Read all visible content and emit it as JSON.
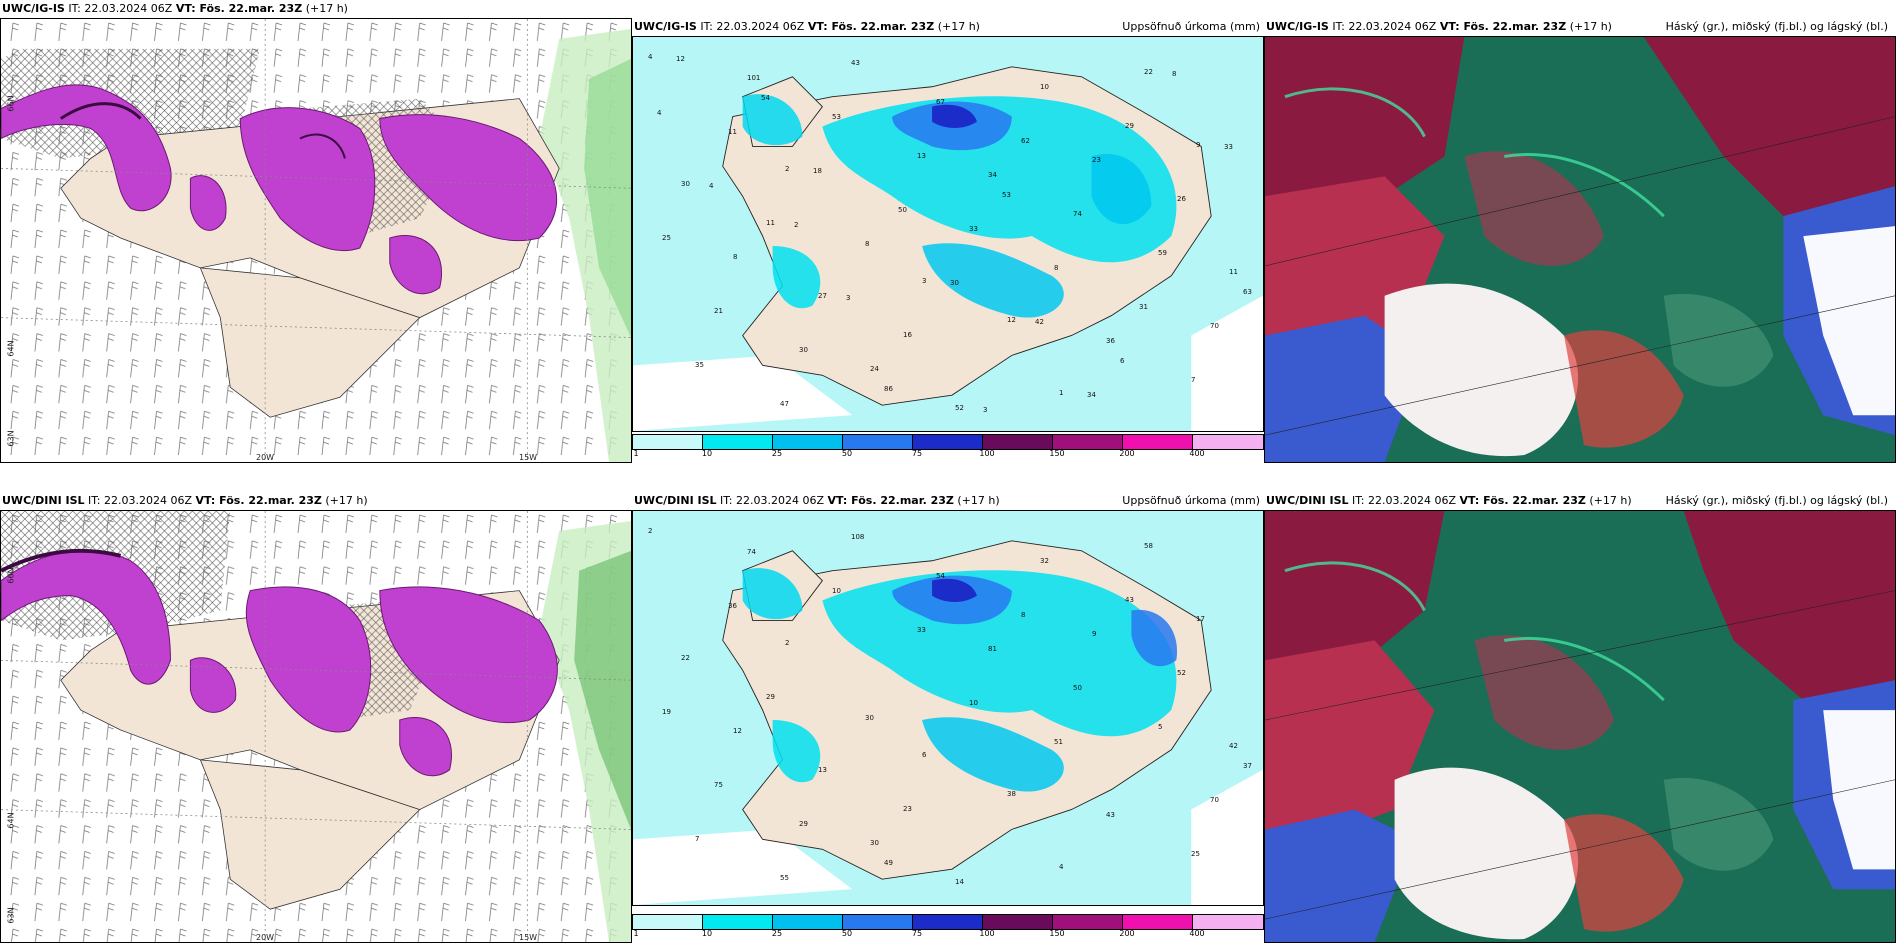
{
  "rows": [
    {
      "model": "UWC/IG-IS",
      "panels": [
        {
          "left_title_model": "UWC/IG-IS",
          "it": "IT: 22.03.2024 06Z",
          "vt": "VT: Fös. 22.mar. 23Z",
          "lead": "(+17 h)",
          "right_title": "",
          "lon_labels": [
            "20W",
            "15W"
          ],
          "lat_labels": [
            "66N",
            "64N",
            "63N"
          ]
        },
        {
          "left_title_model": "UWC/IG-IS",
          "it": "IT: 22.03.2024 06Z",
          "vt": "VT: Fös. 22.mar. 23Z",
          "lead": "(+17 h)",
          "right_title": "Uppsöfnuð úrkoma (mm)",
          "lat_labels": [
            "66N",
            "64N"
          ]
        },
        {
          "left_title_model": "UWC/IG-IS",
          "it": "IT: 22.03.2024 06Z",
          "vt": "VT: Fös. 22.mar. 23Z",
          "lead": "(+17 h)",
          "right_title": "Háský (gr.), miðský (fj.bl.) og lágský (bl.)"
        }
      ]
    },
    {
      "model": "UWC/DINI ISL",
      "panels": [
        {
          "left_title_model": "UWC/DINI ISL",
          "it": "IT: 22.03.2024 06Z",
          "vt": "VT: Fös. 22.mar. 23Z",
          "lead": "(+17 h)",
          "right_title": "",
          "lon_labels": [
            "20W",
            "15W"
          ],
          "lat_labels": [
            "66N",
            "64N",
            "63N"
          ]
        },
        {
          "left_title_model": "UWC/DINI ISL",
          "it": "IT: 22.03.2024 06Z",
          "vt": "VT: Fös. 22.mar. 23Z",
          "lead": "(+17 h)",
          "right_title": "Uppsöfnuð úrkoma (mm)",
          "lat_labels": [
            "66N",
            "64N"
          ]
        },
        {
          "left_title_model": "UWC/DINI ISL",
          "it": "IT: 22.03.2024 06Z",
          "vt": "VT: Fös. 22.mar. 23Z",
          "lead": "(+17 h)",
          "right_title": "Háský (gr.), miðský (fj.bl.) og lágský (bl.)"
        }
      ]
    }
  ],
  "colorbar": {
    "ticks": [
      "1",
      "10",
      "25",
      "50",
      "75",
      "100",
      "150",
      "200",
      "400"
    ],
    "colors": [
      "#c8fafa",
      "#00e8f0",
      "#00c0f0",
      "#2878f0",
      "#1c2cc8",
      "#6a0a5a",
      "#a0107a",
      "#f010b0",
      "#f4b0f0"
    ]
  },
  "precip_labels": {
    "row1": [
      "4",
      "2",
      "3",
      "1",
      "9",
      "8",
      "24",
      "12",
      "22",
      "30",
      "27",
      "52",
      "23",
      "11",
      "11",
      "16",
      "10",
      "26",
      "21",
      "43",
      "34",
      "29",
      "25",
      "30",
      "67",
      "74",
      "70",
      "101",
      "86",
      "62",
      "59",
      "35",
      "53",
      "33",
      "36",
      "63",
      "47",
      "13",
      "8",
      "7",
      "11",
      "8",
      "53",
      "31",
      "12",
      "18",
      "30",
      "34",
      "33",
      "54",
      "50",
      "42",
      "8",
      "4",
      "3",
      "3",
      "6",
      "4",
      "2"
    ],
    "row2": [
      "2",
      "2",
      "6",
      "4",
      "17",
      "12",
      "30",
      "38",
      "58",
      "22",
      "13",
      "14",
      "9",
      "42",
      "29",
      "23",
      "32",
      "52",
      "75",
      "108",
      "81",
      "43",
      "19",
      "29",
      "54",
      "50",
      "70",
      "74",
      "49",
      "8",
      "5",
      "7",
      "10",
      "10",
      "43",
      "37",
      "55",
      "33",
      "51",
      "25",
      "36",
      "30"
    ]
  },
  "legend_colors": {
    "land": "#f3e5d6",
    "sea_precip": "#b7f6f6",
    "snow": "#c040d0",
    "high_cloud": "#1a6e55",
    "mid_cloud": "#8b1a40",
    "low_cloud": "#3a5ad0"
  }
}
